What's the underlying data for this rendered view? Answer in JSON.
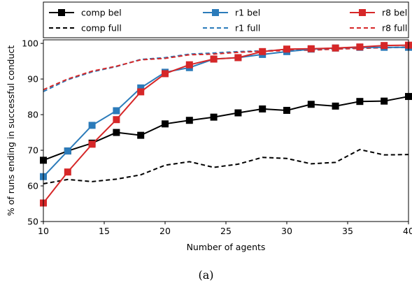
{
  "caption": "(a)",
  "chart_data": {
    "type": "line",
    "xlabel": "Number of agents",
    "ylabel": "% of runs ending in successful conduct",
    "xlim": [
      10,
      40
    ],
    "ylim": [
      50,
      101
    ],
    "xticks": [
      10,
      15,
      20,
      25,
      30,
      35,
      40
    ],
    "yticks": [
      50,
      60,
      70,
      80,
      90,
      100
    ],
    "grid": false,
    "legend_position": "top",
    "x": [
      10,
      12,
      14,
      16,
      18,
      20,
      22,
      24,
      26,
      28,
      30,
      32,
      34,
      36,
      38,
      40
    ],
    "series": [
      {
        "name": "comp bel",
        "color": "#000000",
        "style": "solid",
        "marker": "square",
        "values": [
          67.2,
          69.8,
          72.0,
          75.0,
          74.2,
          77.4,
          78.4,
          79.3,
          80.5,
          81.6,
          81.2,
          82.9,
          82.4,
          83.7,
          83.8,
          85.1
        ]
      },
      {
        "name": "r1 bel",
        "color": "#2b7bba",
        "style": "solid",
        "marker": "square",
        "values": [
          62.6,
          69.8,
          77.0,
          81.1,
          87.5,
          91.9,
          93.2,
          95.6,
          96.0,
          96.9,
          97.7,
          98.4,
          98.7,
          98.9,
          98.9,
          98.9
        ]
      },
      {
        "name": "r8 bel",
        "color": "#d62728",
        "style": "solid",
        "marker": "square",
        "values": [
          55.2,
          63.9,
          71.7,
          78.6,
          86.4,
          91.5,
          94.0,
          95.6,
          96.0,
          97.7,
          98.4,
          98.5,
          98.7,
          99.0,
          99.4,
          99.5
        ]
      },
      {
        "name": "comp full",
        "color": "#000000",
        "style": "dashed",
        "marker": "none",
        "values": [
          60.6,
          61.8,
          61.2,
          61.9,
          63.1,
          65.8,
          66.8,
          65.2,
          66.1,
          68.0,
          67.7,
          66.2,
          66.6,
          70.2,
          68.7,
          68.8
        ]
      },
      {
        "name": "r1 full",
        "color": "#2b7bba",
        "style": "dashed",
        "marker": "none",
        "values": [
          86.5,
          89.8,
          92.0,
          93.5,
          95.5,
          96.0,
          97.0,
          97.3,
          97.7,
          97.9,
          98.2,
          98.2,
          98.5,
          98.7,
          98.8,
          98.9
        ]
      },
      {
        "name": "r8 full",
        "color": "#d62728",
        "style": "dashed",
        "marker": "none",
        "values": [
          87.0,
          90.0,
          92.2,
          93.6,
          95.4,
          95.8,
          96.8,
          97.0,
          97.5,
          97.8,
          98.0,
          98.1,
          98.4,
          98.6,
          98.8,
          99.0
        ]
      }
    ]
  }
}
